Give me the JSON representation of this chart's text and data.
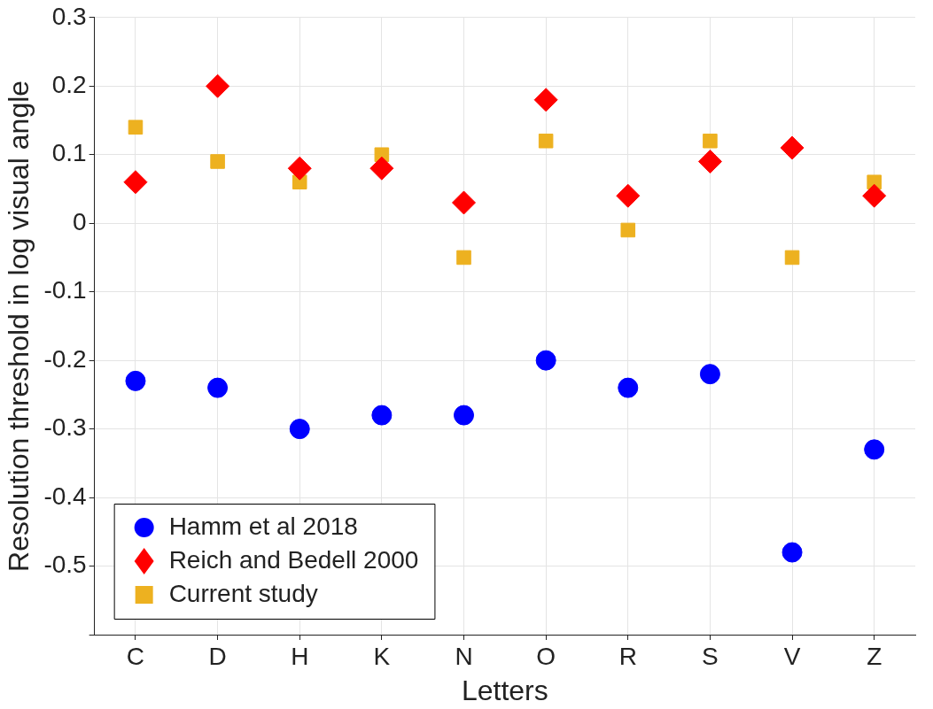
{
  "chart_data": {
    "type": "scatter",
    "xlabel": "Letters",
    "ylabel": "Resolution threshold in log visual angle",
    "categories": [
      "C",
      "D",
      "H",
      "K",
      "N",
      "O",
      "R",
      "S",
      "V",
      "Z"
    ],
    "series": [
      {
        "name": "Hamm et al 2018",
        "color": "#0000ff",
        "marker": "circle",
        "values": [
          -0.23,
          -0.24,
          -0.3,
          -0.28,
          -0.28,
          -0.2,
          -0.24,
          -0.22,
          -0.48,
          -0.33
        ]
      },
      {
        "name": "Reich and Bedell 2000",
        "color": "#ff0000",
        "marker": "diamond",
        "values": [
          0.06,
          0.2,
          0.08,
          0.08,
          0.03,
          0.18,
          0.04,
          0.09,
          0.11,
          0.04
        ]
      },
      {
        "name": "Current study",
        "color": "#edb120",
        "marker": "square",
        "values": [
          0.14,
          0.09,
          0.06,
          0.1,
          -0.05,
          0.12,
          -0.01,
          0.12,
          -0.05,
          0.06
        ]
      }
    ],
    "ylim": [
      -0.6,
      0.3
    ],
    "yticks": [
      {
        "value": -0.6,
        "label": null
      },
      -0.5,
      -0.4,
      -0.3,
      -0.2,
      -0.1,
      0,
      0.1,
      0.2,
      0.3
    ],
    "grid": true,
    "legend": "bottom left"
  }
}
